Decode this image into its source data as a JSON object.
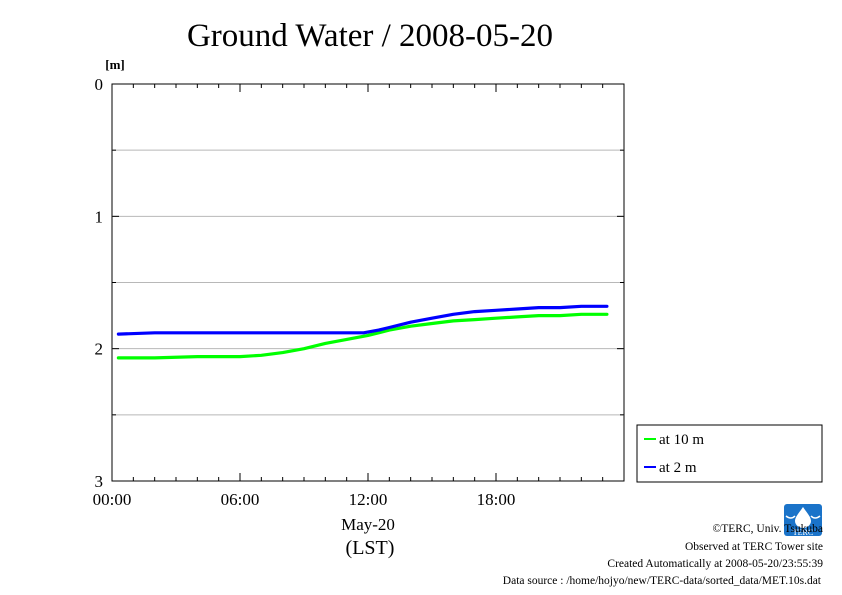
{
  "chart_data": {
    "type": "line",
    "title": "Ground Water / 2008-05-20",
    "y_unit": "[m]",
    "ylim": [
      0,
      3
    ],
    "y_reversed": true,
    "y_ticks": [
      0,
      1,
      2,
      3
    ],
    "y_tick_labels": [
      "0",
      "1",
      "2",
      "3"
    ],
    "y_grid": [
      0.5,
      1.0,
      1.5,
      2.0,
      2.5
    ],
    "xlim": [
      0,
      24
    ],
    "x_ticks": [
      0,
      6,
      12,
      18
    ],
    "x_tick_labels": [
      "00:00",
      "06:00",
      "12:00",
      "18:00"
    ],
    "xlabel_date": "May-20",
    "xlabel_zone": "(LST)",
    "grid": "horizontal",
    "legend_position": "bottom-right outside",
    "series": [
      {
        "name": "at 10 m",
        "color": "#00ff00",
        "x": [
          0.3,
          2,
          4,
          6,
          7,
          8,
          9,
          10,
          11,
          12,
          13,
          14,
          15,
          16,
          17,
          18,
          19,
          20,
          21,
          22,
          23.2
        ],
        "y": [
          2.07,
          2.07,
          2.06,
          2.06,
          2.05,
          2.03,
          2.0,
          1.96,
          1.93,
          1.9,
          1.86,
          1.83,
          1.81,
          1.79,
          1.78,
          1.77,
          1.76,
          1.75,
          1.75,
          1.74,
          1.74
        ]
      },
      {
        "name": "at 2 m",
        "color": "#0000ff",
        "x": [
          0.3,
          2,
          4,
          6,
          8,
          10,
          11,
          11.8,
          12.5,
          13,
          14,
          15,
          16,
          17,
          18,
          19,
          20,
          21,
          22,
          23.2
        ],
        "y": [
          1.89,
          1.88,
          1.88,
          1.88,
          1.88,
          1.88,
          1.88,
          1.88,
          1.86,
          1.84,
          1.8,
          1.77,
          1.74,
          1.72,
          1.71,
          1.7,
          1.69,
          1.69,
          1.68,
          1.68
        ]
      }
    ]
  },
  "footer": {
    "copyright": "©TERC, Univ. Tsukuba",
    "observed": "Observed at TERC Tower site",
    "created": "Created Automatically at 2008-05-20/23:55:39",
    "source": "Data source : /home/hojyo/new/TERC-data/sorted_data/MET.10s.dat",
    "logo_text": "TERC"
  }
}
